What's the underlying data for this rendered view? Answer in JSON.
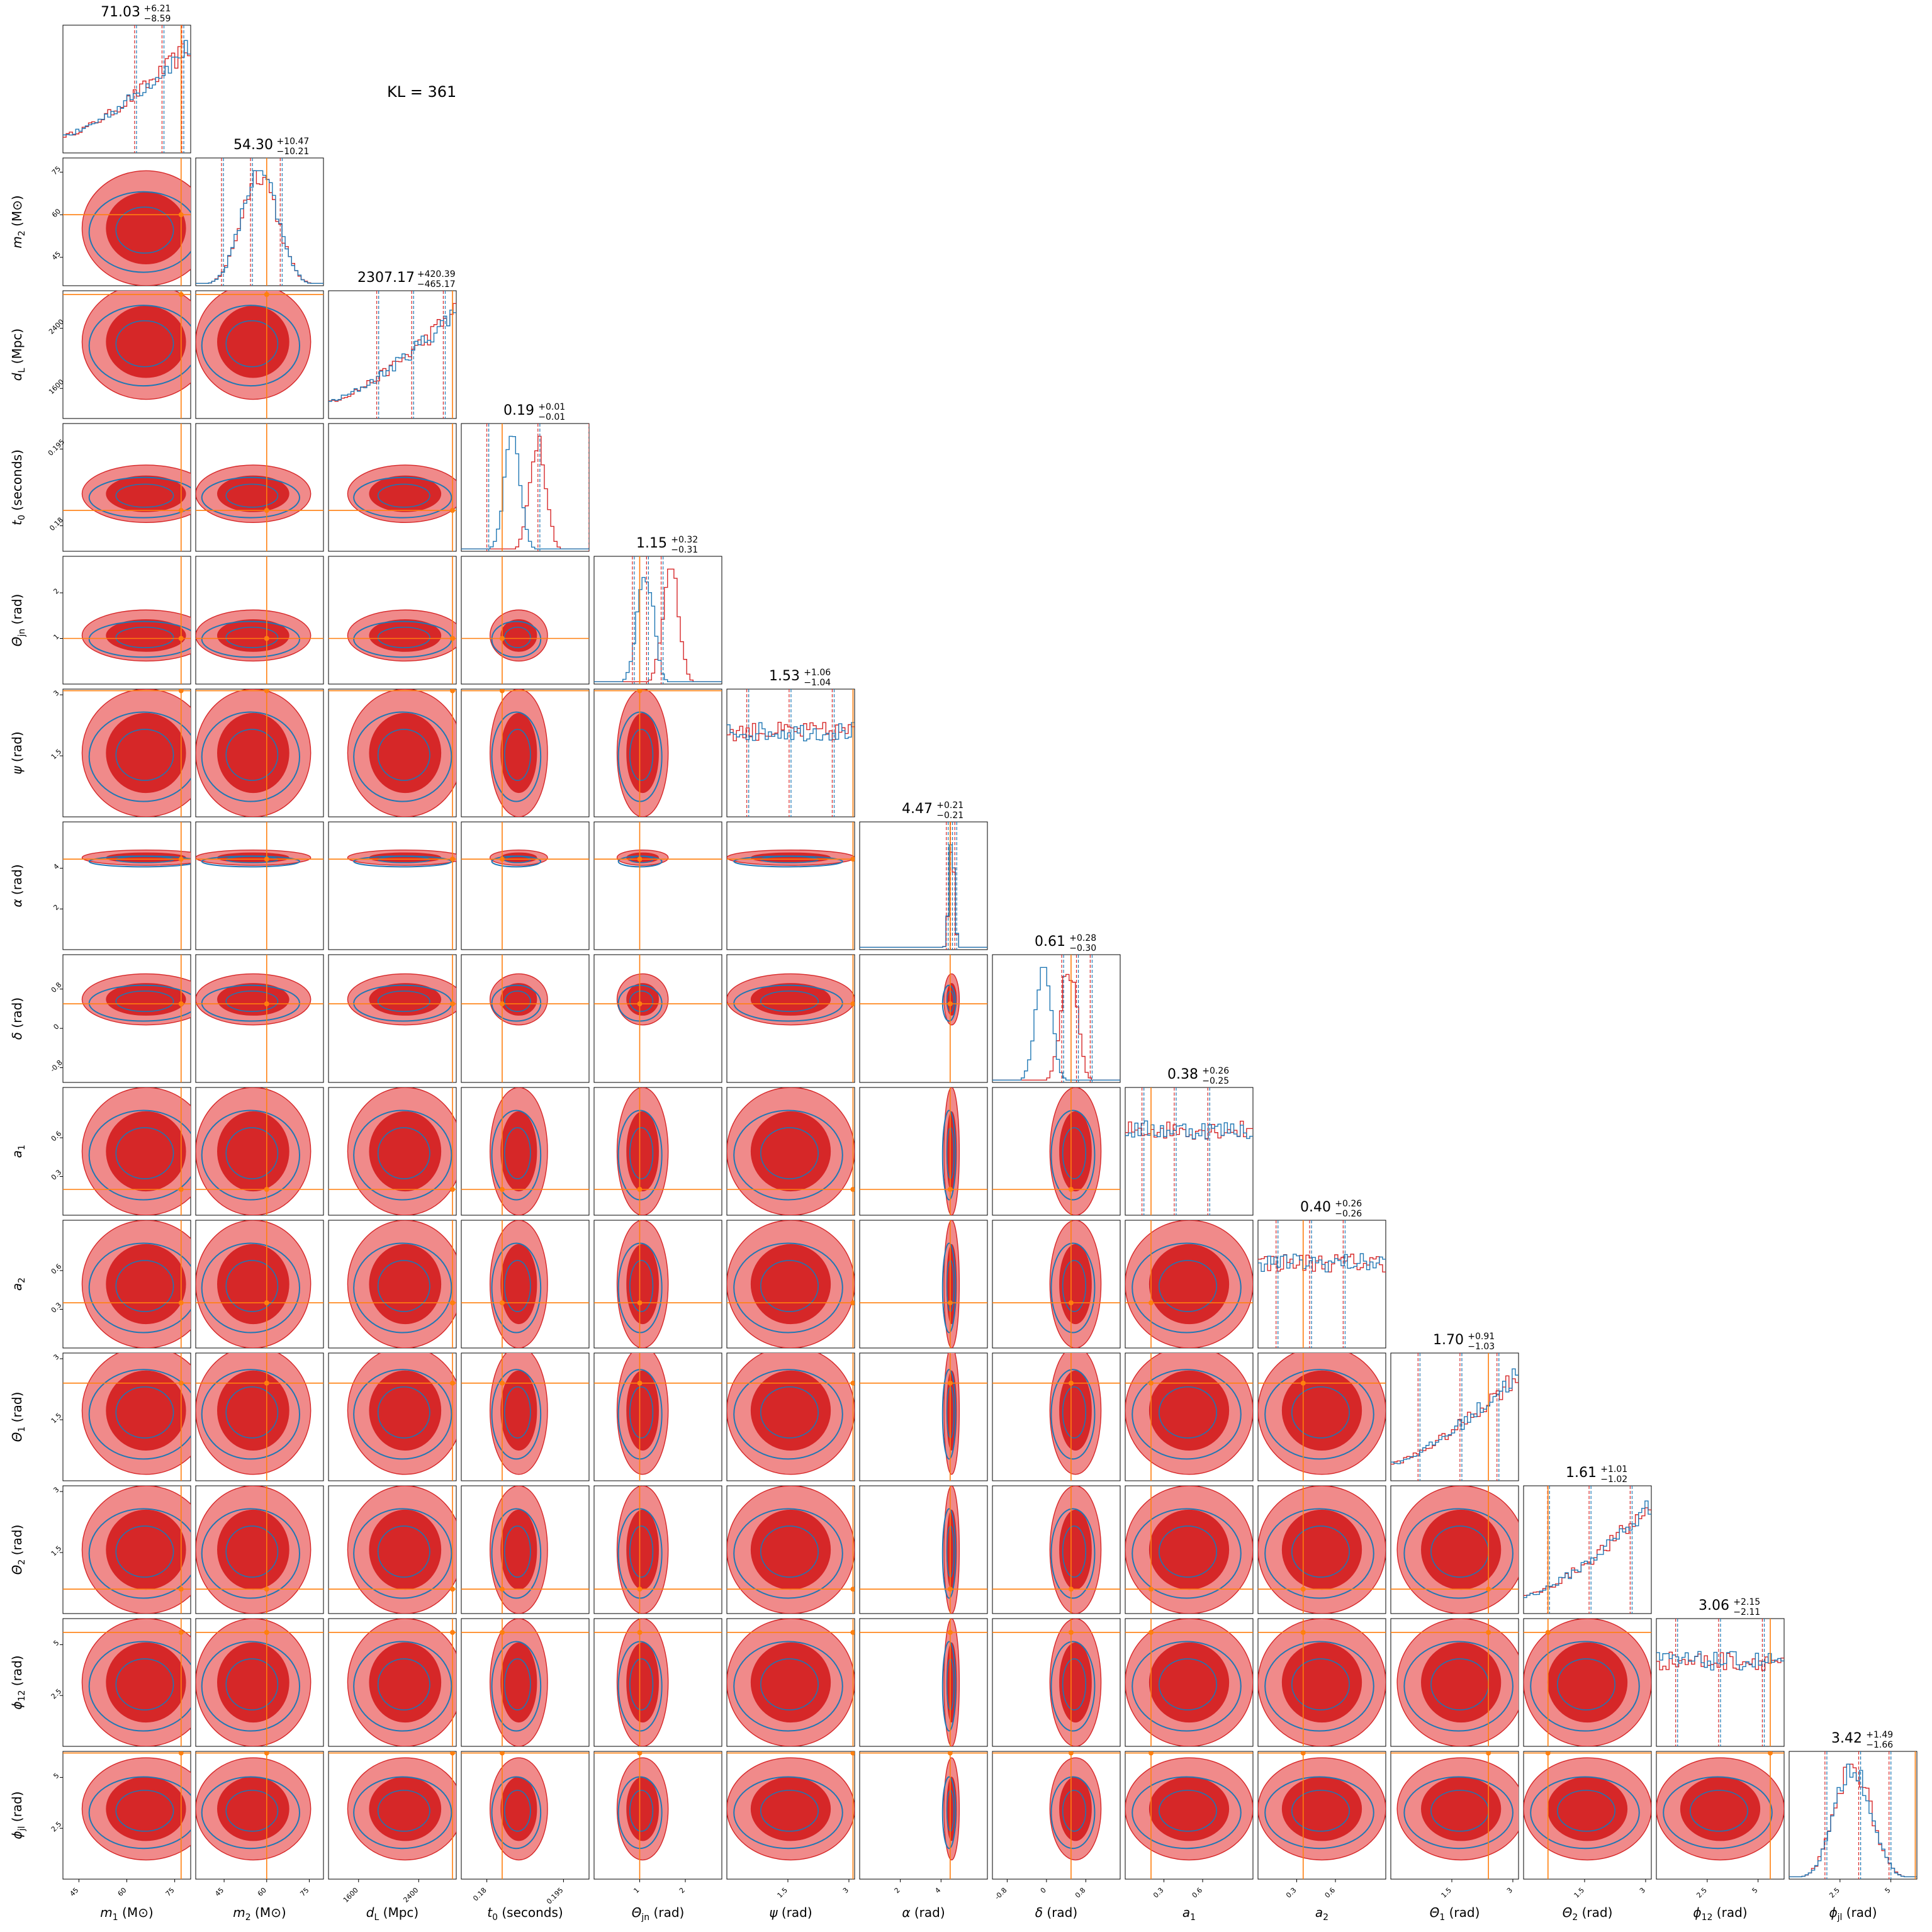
{
  "annotation": "KL = 361",
  "colors": {
    "red": "#d62728",
    "red_light": "#f08a8a",
    "blue": "#1f77b4",
    "truth": "#ff7f0e",
    "frame": "#000000"
  },
  "chart_data": {
    "type": "corner",
    "series": [
      {
        "name": "",
        "color": "#d62728"
      },
      {
        "name": "",
        "color": "#1f77b4"
      }
    ],
    "parameters": [
      {
        "key": "m1",
        "xlabel": "m_1 (M_⊙)",
        "xlabel_base": "m",
        "xlabel_sub": "1",
        "xlabel_tail": " (M⊙)",
        "range": [
          40,
          80
        ],
        "truth": 77,
        "median": 71.03,
        "plus": "+6.21",
        "minus": "−8.59",
        "ticks": [
          45,
          60,
          75
        ],
        "median_label": "71.03",
        "hist_shape": "rising",
        "contour_width": 1,
        "contour_center": 0.65
      },
      {
        "key": "m2",
        "xlabel": "m_2 (M_⊙)",
        "xlabel_base": "m",
        "xlabel_sub": "2",
        "xlabel_tail": " (M⊙)",
        "range": [
          35,
          80
        ],
        "truth": 60,
        "median": 54.3,
        "plus": "+10.47",
        "minus": "−10.21",
        "ticks": [
          45,
          60,
          75
        ],
        "median_label": "54.30",
        "hist_shape": "hump",
        "contour_width": 0.9,
        "contour_center": 0.45
      },
      {
        "key": "dL",
        "xlabel": "d_L (Mpc)",
        "xlabel_base": "d",
        "xlabel_sub": "L",
        "xlabel_tail": " (Mpc)",
        "range": [
          1200,
          2900
        ],
        "truth": 2850,
        "median": 2307.17,
        "plus": "+420.39",
        "minus": "−465.17",
        "ticks": [
          1600,
          2400
        ],
        "median_label": "2307.17",
        "hist_shape": "rising",
        "contour_width": 0.9,
        "contour_center": 0.6
      },
      {
        "key": "t0",
        "xlabel": "t_0 (seconds)",
        "xlabel_base": "t",
        "xlabel_sub": "0",
        "xlabel_tail": " (seconds)",
        "range": [
          0.175,
          0.2
        ],
        "truth": 0.183,
        "median": 0.19,
        "plus": "+0.01",
        "minus": "−0.01",
        "ticks": [
          0.18,
          0.195
        ],
        "median_label": "0.19",
        "hist_shape": "narrow",
        "contour_width": 0.45,
        "contour_center": 0.45
      },
      {
        "key": "thetajn",
        "xlabel": "Θ_jn (rad)",
        "xlabel_base": "Θ",
        "xlabel_sub": "jn",
        "xlabel_tail": " (rad)",
        "range": [
          0,
          2.8
        ],
        "truth": 1.0,
        "median": 1.15,
        "plus": "+0.32",
        "minus": "−0.31",
        "ticks": [
          1,
          2
        ],
        "median_label": "1.15",
        "hist_shape": "narrow",
        "contour_width": 0.4,
        "contour_center": 0.38
      },
      {
        "key": "psi",
        "xlabel": "ψ (rad)",
        "xlabel_base": "ψ",
        "xlabel_sub": "",
        "xlabel_tail": " (rad)",
        "range": [
          0,
          3.14
        ],
        "truth": 3.1,
        "median": 1.53,
        "plus": "+1.06",
        "minus": "−1.04",
        "ticks": [
          1.5,
          3.0
        ],
        "median_label": "1.53",
        "hist_shape": "flat",
        "contour_width": 1,
        "contour_center": 0.5
      },
      {
        "key": "alpha",
        "xlabel": "α (rad)",
        "xlabel_base": "α",
        "xlabel_sub": "",
        "xlabel_tail": " (rad)",
        "range": [
          0,
          6.28
        ],
        "truth": 4.45,
        "median": 4.47,
        "plus": "+0.21",
        "minus": "−0.21",
        "ticks": [
          2,
          4
        ],
        "median_label": "4.47",
        "hist_shape": "spike",
        "contour_width": 0.12,
        "contour_center": 0.72
      },
      {
        "key": "delta",
        "xlabel": "δ (rad)",
        "xlabel_base": "δ",
        "xlabel_sub": "",
        "xlabel_tail": " (rad)",
        "range": [
          -1.1,
          1.5
        ],
        "truth": 0.5,
        "median": 0.61,
        "plus": "+0.28",
        "minus": "−0.30",
        "ticks": [
          -0.8,
          0.0,
          0.8
        ],
        "median_label": "0.61",
        "hist_shape": "narrow",
        "contour_width": 0.4,
        "contour_center": 0.65
      },
      {
        "key": "a1",
        "xlabel": "a_1",
        "xlabel_base": "a",
        "xlabel_sub": "1",
        "xlabel_tail": "",
        "range": [
          0,
          0.99
        ],
        "truth": 0.2,
        "median": 0.38,
        "plus": "+0.26",
        "minus": "−0.25",
        "ticks": [
          0.3,
          0.6
        ],
        "median_label": "0.38",
        "hist_shape": "flat",
        "contour_width": 1,
        "contour_center": 0.5
      },
      {
        "key": "a2",
        "xlabel": "a_2",
        "xlabel_base": "a",
        "xlabel_sub": "2",
        "xlabel_tail": "",
        "range": [
          0,
          0.99
        ],
        "truth": 0.35,
        "median": 0.4,
        "plus": "+0.26",
        "minus": "−0.26",
        "ticks": [
          0.3,
          0.6
        ],
        "median_label": "0.40",
        "hist_shape": "flat",
        "contour_width": 1,
        "contour_center": 0.5
      },
      {
        "key": "theta1",
        "xlabel": "Θ_1 (rad)",
        "xlabel_base": "Θ",
        "xlabel_sub": "1",
        "xlabel_tail": " (rad)",
        "range": [
          0,
          3.14
        ],
        "truth": 2.4,
        "median": 1.7,
        "plus": "+0.91",
        "minus": "−1.03",
        "ticks": [
          1.5,
          3.0
        ],
        "median_label": "1.70",
        "hist_shape": "rising",
        "contour_width": 1,
        "contour_center": 0.55
      },
      {
        "key": "theta2",
        "xlabel": "Θ_2 (rad)",
        "xlabel_base": "Θ",
        "xlabel_sub": "2",
        "xlabel_tail": " (rad)",
        "range": [
          0,
          3.14
        ],
        "truth": 0.6,
        "median": 1.61,
        "plus": "+1.01",
        "minus": "−1.02",
        "ticks": [
          1.5,
          3.0
        ],
        "median_label": "1.61",
        "hist_shape": "rising",
        "contour_width": 1,
        "contour_center": 0.5
      },
      {
        "key": "phi12",
        "xlabel": "ϕ_12 (rad)",
        "xlabel_base": "ϕ",
        "xlabel_sub": "12",
        "xlabel_tail": " (rad)",
        "range": [
          0,
          6.28
        ],
        "truth": 5.6,
        "median": 3.06,
        "plus": "+2.15",
        "minus": "−2.11",
        "ticks": [
          2.5,
          5.0
        ],
        "median_label": "3.06",
        "hist_shape": "flat",
        "contour_width": 1,
        "contour_center": 0.5
      },
      {
        "key": "phijl",
        "xlabel": "ϕ_jl (rad)",
        "xlabel_base": "ϕ",
        "xlabel_sub": "jl",
        "xlabel_tail": " (rad)",
        "range": [
          0,
          6.28
        ],
        "truth": 6.2,
        "median": 3.42,
        "plus": "+1.49",
        "minus": "−1.66",
        "ticks": [
          2.5,
          5.0
        ],
        "median_label": "3.42",
        "hist_shape": "hump",
        "contour_width": 0.8,
        "contour_center": 0.55
      }
    ]
  }
}
